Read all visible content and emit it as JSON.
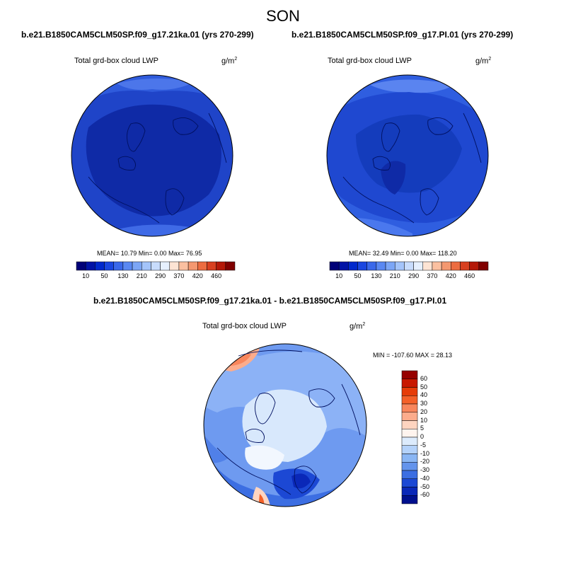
{
  "season": "SON",
  "panels": [
    {
      "title": "b.e21.B1850CAM5CLM50SP.f09_g17.21ka.01 (yrs 270-299)",
      "variable": "Total grd-box cloud LWP",
      "units": "g/m",
      "units_exp": "2",
      "stats": "MEAN=  10.79  Min=   0.00  Max=  76.95",
      "colorbar": {
        "orientation": "horizontal",
        "labels": [
          "10",
          "50",
          "130",
          "210",
          "290",
          "370",
          "420",
          "460"
        ],
        "colors": [
          "#000078",
          "#0012a6",
          "#0028cc",
          "#1a46e0",
          "#3a68ea",
          "#5a88f2",
          "#7ca6f6",
          "#a4c4fa",
          "#c8dcfc",
          "#e6f0fe",
          "#fde4d4",
          "#fbc0a0",
          "#f49870",
          "#ec6c40",
          "#d84020",
          "#b41808",
          "#800000"
        ]
      }
    },
    {
      "title": "b.e21.B1850CAM5CLM50SP.f09_g17.PI.01 (yrs 270-299)",
      "variable": "Total grd-box cloud LWP",
      "units": "g/m",
      "units_exp": "2",
      "stats": "MEAN=  32.49  Min=   0.00  Max= 118.20",
      "colorbar": {
        "orientation": "horizontal",
        "labels": [
          "10",
          "50",
          "130",
          "210",
          "290",
          "370",
          "420",
          "460"
        ],
        "colors": [
          "#000078",
          "#0012a6",
          "#0028cc",
          "#1a46e0",
          "#3a68ea",
          "#5a88f2",
          "#7ca6f6",
          "#a4c4fa",
          "#c8dcfc",
          "#e6f0fe",
          "#fde4d4",
          "#fbc0a0",
          "#f49870",
          "#ec6c40",
          "#d84020",
          "#b41808",
          "#800000"
        ]
      }
    },
    {
      "title": "b.e21.B1850CAM5CLM50SP.f09_g17.21ka.01 - b.e21.B1850CAM5CLM50SP.f09_g17.PI.01",
      "variable": "Total grd-box cloud LWP",
      "units": "g/m",
      "units_exp": "2",
      "stats": "MIN = -107.60 MAX =  28.13",
      "colorbar": {
        "orientation": "vertical",
        "labels": [
          "60",
          "50",
          "40",
          "30",
          "20",
          "10",
          "5",
          "0",
          "-5",
          "-10",
          "-20",
          "-30",
          "-40",
          "-50",
          "-60"
        ],
        "colors": [
          "#960000",
          "#c81800",
          "#e63c08",
          "#f46028",
          "#f8865c",
          "#fcac8c",
          "#fed4c0",
          "#fff4ee",
          "#dcebfc",
          "#b4d2fa",
          "#8ab6f4",
          "#6494ec",
          "#3c6ee2",
          "#1c48d4",
          "#0a28b8",
          "#00108e"
        ]
      }
    }
  ]
}
